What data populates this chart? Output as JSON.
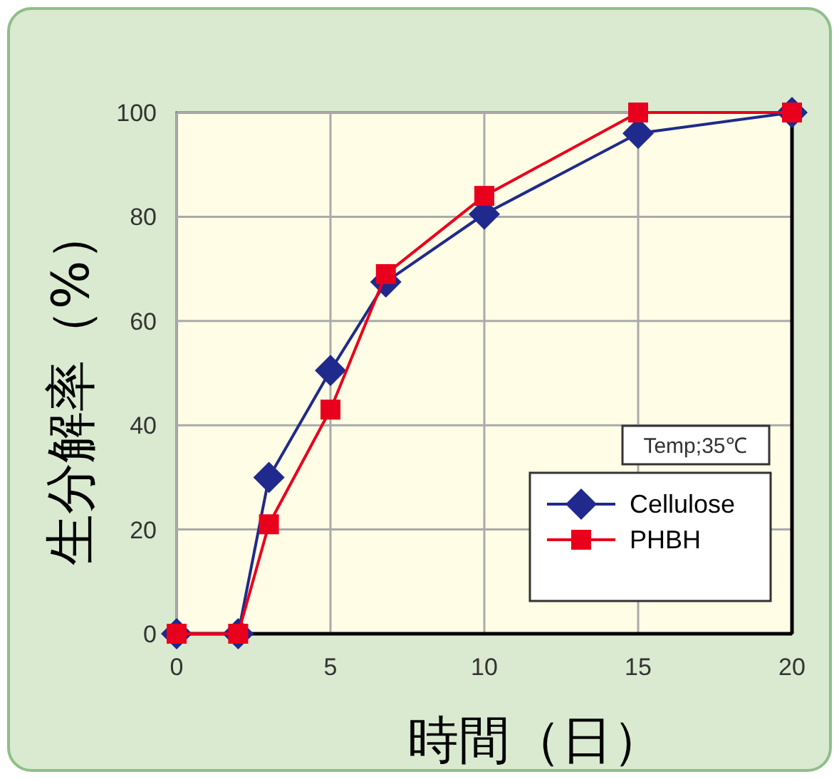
{
  "chart_data": {
    "type": "line",
    "xlabel": "時間（日）",
    "ylabel": "生分解率（%）",
    "x": [
      0,
      2,
      3,
      5,
      6.8,
      10,
      15,
      20
    ],
    "series": [
      {
        "name": "Cellulose",
        "color": "#1f2a8c",
        "marker": "diamond",
        "values": [
          0,
          0,
          30,
          50.5,
          67.5,
          80.5,
          96,
          100
        ]
      },
      {
        "name": "PHBH",
        "color": "#e8001c",
        "marker": "square",
        "values": [
          0,
          0,
          21,
          43,
          69,
          84,
          100,
          100
        ]
      }
    ],
    "xlim": [
      0,
      20
    ],
    "ylim": [
      0,
      100
    ],
    "xticks": [
      0,
      5,
      10,
      15,
      20
    ],
    "yticks": [
      0,
      20,
      40,
      60,
      80,
      100
    ],
    "grid": true,
    "legend": "bottom right",
    "annotations": [
      "Temp;35℃"
    ]
  }
}
